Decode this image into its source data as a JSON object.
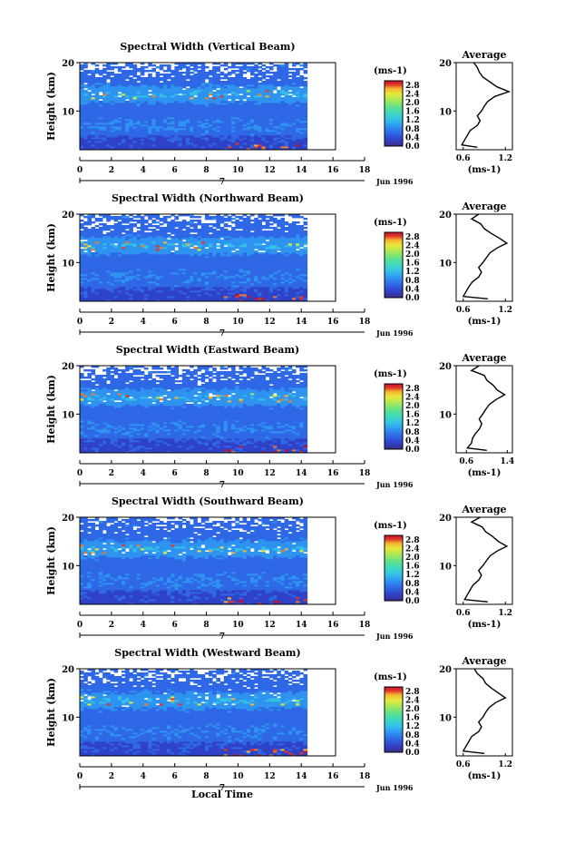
{
  "chart_data": [
    {
      "type": "heatmap",
      "title": "Spectral Width (Vertical Beam)",
      "ylabel": "Height (km)",
      "x_ticks": [
        "0",
        "2",
        "4",
        "6",
        "8",
        "10",
        "12",
        "14",
        "16",
        "18"
      ],
      "xlim": [
        0,
        18
      ],
      "y_ticks": [
        "20",
        "10"
      ],
      "ylim": [
        2,
        20
      ],
      "date_label": "Jun 1996",
      "day_marker": "7",
      "colorbar": {
        "unit": "(ms-1)",
        "ticks": [
          "2.8",
          "2.4",
          "2.0",
          "1.6",
          "1.2",
          "0.8",
          "0.4",
          "0.0"
        ],
        "range": [
          0,
          3.0
        ]
      },
      "average_profile": {
        "title": "Average",
        "xlabel": "(ms-1)",
        "x_ticks": [
          "0.6",
          "1.2"
        ],
        "xlim": [
          0.5,
          1.3
        ],
        "y_ticks": [
          "20",
          "10"
        ],
        "height": [
          2.5,
          3,
          4,
          5,
          6,
          7,
          8,
          9,
          10,
          11,
          12,
          13,
          14,
          15,
          16,
          17,
          18,
          19,
          20
        ],
        "values": [
          0.8,
          0.58,
          0.62,
          0.66,
          0.7,
          0.8,
          0.84,
          0.8,
          0.86,
          0.9,
          0.95,
          1.05,
          1.25,
          1.08,
          0.98,
          0.88,
          0.83,
          0.8,
          0.75
        ]
      }
    },
    {
      "type": "heatmap",
      "title": "Spectral Width (Northward Beam)",
      "ylabel": "Height (km)",
      "x_ticks": [
        "0",
        "2",
        "4",
        "6",
        "8",
        "10",
        "12",
        "14",
        "16",
        "18"
      ],
      "xlim": [
        0,
        18
      ],
      "y_ticks": [
        "20",
        "10"
      ],
      "ylim": [
        2,
        20
      ],
      "date_label": "Jun 1996",
      "day_marker": "7",
      "colorbar": {
        "unit": "(ms-1)",
        "ticks": [
          "2.8",
          "2.4",
          "2.0",
          "1.6",
          "1.2",
          "0.8",
          "0.4",
          "0.0"
        ],
        "range": [
          0,
          3.0
        ]
      },
      "average_profile": {
        "title": "Average",
        "xlabel": "(ms-1)",
        "x_ticks": [
          "0.6",
          "1.2"
        ],
        "xlim": [
          0.5,
          1.3
        ],
        "y_ticks": [
          "20",
          "10"
        ],
        "height": [
          2.5,
          3,
          4,
          5,
          6,
          7,
          8,
          9,
          10,
          11,
          12,
          13,
          14,
          15,
          16,
          17,
          18,
          19,
          20
        ],
        "values": [
          0.95,
          0.6,
          0.64,
          0.68,
          0.73,
          0.82,
          0.86,
          0.82,
          0.88,
          0.93,
          0.98,
          1.08,
          1.22,
          1.12,
          1.0,
          0.9,
          0.85,
          0.72,
          0.82
        ]
      }
    },
    {
      "type": "heatmap",
      "title": "Spectral Width (Eastward Beam)",
      "ylabel": "Height (km)",
      "x_ticks": [
        "0",
        "2",
        "4",
        "6",
        "8",
        "10",
        "12",
        "14",
        "16",
        "18"
      ],
      "xlim": [
        0,
        18
      ],
      "y_ticks": [
        "20",
        "10"
      ],
      "ylim": [
        2,
        20
      ],
      "date_label": "Jun 1996",
      "day_marker": "7",
      "colorbar": {
        "unit": "(ms-1)",
        "ticks": [
          "2.8",
          "2.4",
          "2.0",
          "1.6",
          "1.2",
          "0.8",
          "0.4",
          "0.0"
        ],
        "range": [
          0,
          3.0
        ]
      },
      "average_profile": {
        "title": "Average",
        "xlabel": "(ms-1)",
        "x_ticks": [
          "0.6",
          "1.4"
        ],
        "xlim": [
          0.4,
          1.5
        ],
        "y_ticks": [
          "20",
          "10"
        ],
        "height": [
          2.5,
          3,
          4,
          5,
          6,
          7,
          8,
          9,
          10,
          11,
          12,
          13,
          14,
          15,
          16,
          17,
          18,
          19,
          20
        ],
        "values": [
          1.0,
          0.62,
          0.7,
          0.72,
          0.78,
          0.86,
          0.9,
          0.85,
          0.92,
          0.98,
          1.05,
          1.18,
          1.35,
          1.2,
          1.12,
          1.0,
          0.95,
          0.7,
          0.85
        ]
      }
    },
    {
      "type": "heatmap",
      "title": "Spectral Width (Southward Beam)",
      "ylabel": "Height (km)",
      "x_ticks": [
        "0",
        "2",
        "4",
        "6",
        "8",
        "10",
        "12",
        "14",
        "16",
        "18"
      ],
      "xlim": [
        0,
        18
      ],
      "y_ticks": [
        "20",
        "10"
      ],
      "ylim": [
        2,
        20
      ],
      "date_label": "Jun 1996",
      "day_marker": "7",
      "colorbar": {
        "unit": "(ms-1)",
        "ticks": [
          "2.8",
          "2.4",
          "2.0",
          "1.6",
          "1.2",
          "0.8",
          "0.4",
          "0.0"
        ],
        "range": [
          0,
          3.0
        ]
      },
      "average_profile": {
        "title": "Average",
        "xlabel": "(ms-1)",
        "x_ticks": [
          "0.6",
          "1.2"
        ],
        "xlim": [
          0.5,
          1.3
        ],
        "y_ticks": [
          "20",
          "10"
        ],
        "height": [
          2.5,
          3,
          4,
          5,
          6,
          7,
          8,
          9,
          10,
          11,
          12,
          13,
          14,
          15,
          16,
          17,
          18,
          19,
          20
        ],
        "values": [
          0.95,
          0.62,
          0.66,
          0.7,
          0.74,
          0.82,
          0.86,
          0.82,
          0.88,
          0.93,
          0.98,
          1.08,
          1.22,
          1.1,
          1.02,
          0.92,
          0.87,
          0.72,
          0.84
        ]
      }
    },
    {
      "type": "heatmap",
      "title": "Spectral Width (Westward Beam)",
      "ylabel": "Height (km)",
      "x_ticks": [
        "0",
        "2",
        "4",
        "6",
        "8",
        "10",
        "12",
        "14",
        "16",
        "18"
      ],
      "xlim": [
        0,
        18
      ],
      "y_ticks": [
        "20",
        "10"
      ],
      "ylim": [
        2,
        20
      ],
      "date_label": "Jun 1996",
      "day_marker": "7",
      "colorbar": {
        "unit": "(ms-1)",
        "ticks": [
          "2.8",
          "2.4",
          "2.0",
          "1.6",
          "1.2",
          "0.8",
          "0.4",
          "0.0"
        ],
        "range": [
          0,
          3.0
        ]
      },
      "average_profile": {
        "title": "Average",
        "xlabel": "(ms-1)",
        "x_ticks": [
          "0.6",
          "1.2"
        ],
        "xlim": [
          0.5,
          1.3
        ],
        "y_ticks": [
          "20",
          "10"
        ],
        "height": [
          2.5,
          3,
          4,
          5,
          6,
          7,
          8,
          9,
          10,
          11,
          12,
          13,
          14,
          15,
          16,
          17,
          18,
          19,
          20
        ],
        "values": [
          0.9,
          0.6,
          0.64,
          0.68,
          0.72,
          0.82,
          0.86,
          0.82,
          0.88,
          0.92,
          0.97,
          1.06,
          1.2,
          1.1,
          1.0,
          0.92,
          0.88,
          0.8,
          0.76
        ]
      }
    }
  ],
  "figure": {
    "xlabel": "Local Time",
    "colormap": [
      "#3b2b8c",
      "#2f42c8",
      "#2f68e6",
      "#2f93f0",
      "#35c0e8",
      "#3fd9c0",
      "#5fe08a",
      "#a6e85a",
      "#e8e83c",
      "#f5b431",
      "#f07a2a",
      "#e0372a",
      "#c8102a"
    ]
  }
}
